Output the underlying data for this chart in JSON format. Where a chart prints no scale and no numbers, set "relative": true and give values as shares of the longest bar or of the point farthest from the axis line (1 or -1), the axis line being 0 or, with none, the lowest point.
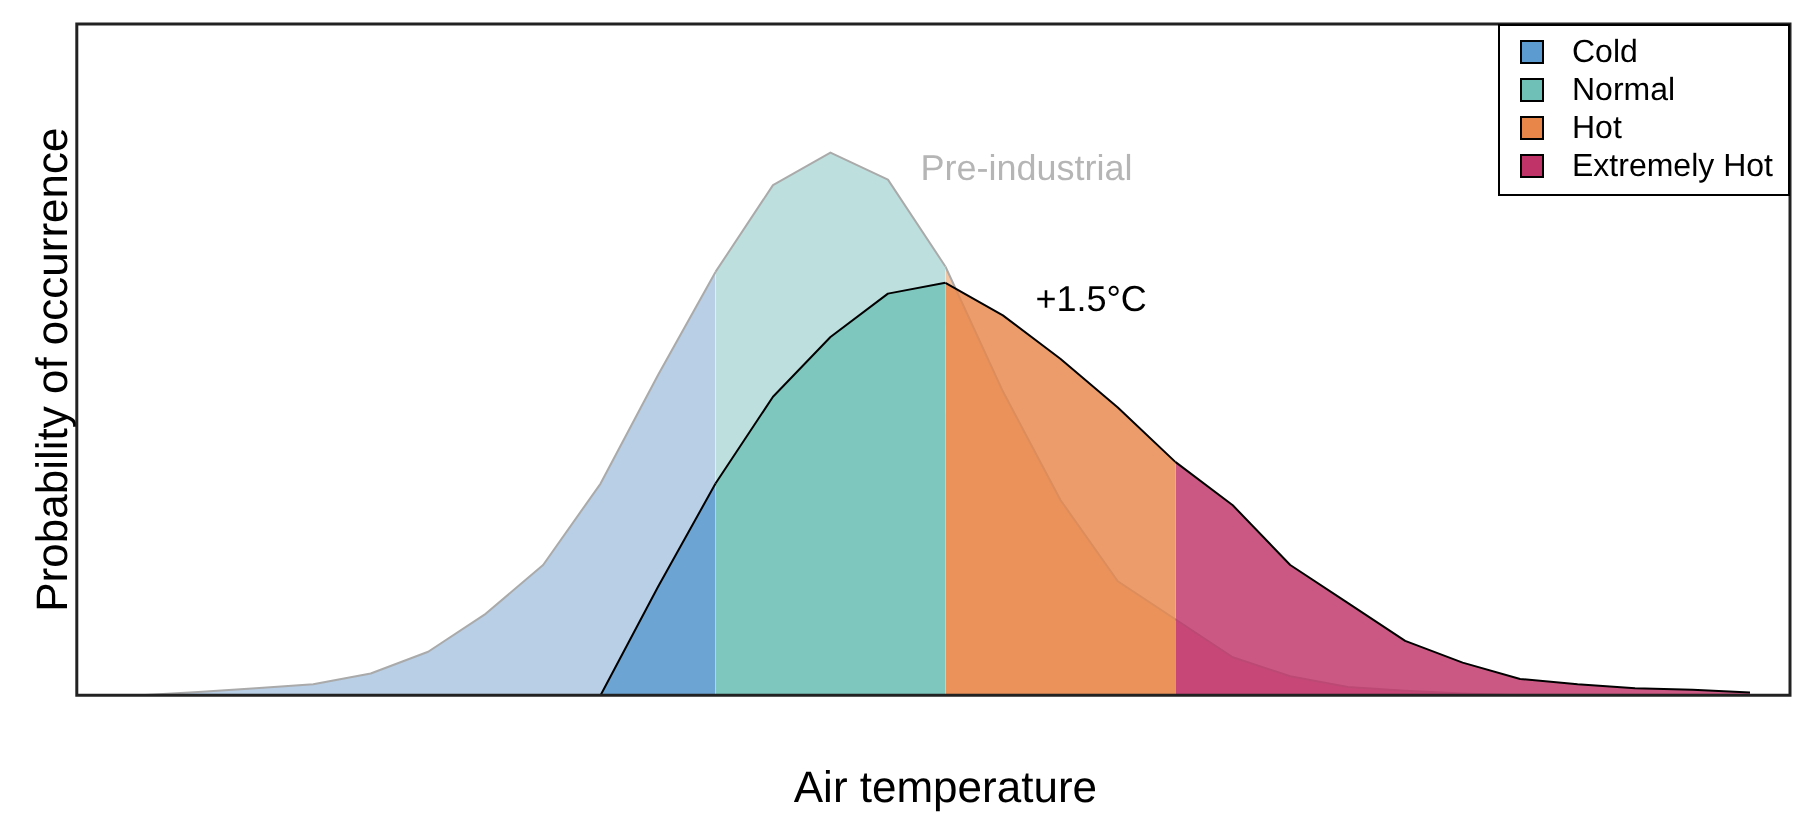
{
  "chart_data": {
    "type": "area",
    "relative": true,
    "xlabel": "Air temperature",
    "ylabel": "Probability of occurrence",
    "legend": "top right",
    "categories": [
      null,
      null,
      null,
      null,
      null,
      null,
      null,
      null,
      null,
      null,
      null,
      null,
      null,
      null,
      null,
      null,
      null,
      null,
      null,
      null,
      null,
      null,
      null,
      null,
      null,
      null,
      null,
      null,
      null
    ],
    "series": [
      {
        "name": "Cold",
        "color": "#5b9bd0",
        "values": [
          null,
          null,
          null,
          null,
          null,
          null,
          null,
          null,
          0,
          0.2,
          0.39,
          null,
          null,
          null,
          null,
          null,
          null,
          null,
          null,
          null,
          null,
          null,
          null,
          null,
          null,
          null,
          null,
          null,
          null
        ]
      },
      {
        "name": "Normal",
        "color": "#6fc1b8",
        "values": [
          null,
          null,
          null,
          null,
          null,
          null,
          null,
          null,
          null,
          null,
          0.39,
          0.55,
          0.66,
          0.74,
          0.76,
          null,
          null,
          null,
          null,
          null,
          null,
          null,
          null,
          null,
          null,
          null,
          null,
          null,
          null
        ]
      },
      {
        "name": "Hot",
        "color": "#e8864a",
        "values": [
          null,
          null,
          null,
          null,
          null,
          null,
          null,
          null,
          null,
          null,
          null,
          null,
          null,
          null,
          0.76,
          0.7,
          0.62,
          0.53,
          0.43,
          null,
          null,
          null,
          null,
          null,
          null,
          null,
          null,
          null,
          null
        ]
      },
      {
        "name": "Extremely Hot",
        "color": "#bf3368",
        "values": [
          null,
          null,
          null,
          null,
          null,
          null,
          null,
          null,
          null,
          null,
          null,
          null,
          null,
          null,
          null,
          null,
          null,
          null,
          0.43,
          0.35,
          0.24,
          0.17,
          0.1,
          0.06,
          0.03,
          0.02,
          0.013,
          0.01,
          0.005
        ]
      },
      {
        "color": "#b8cfe6",
        "values": [
          0,
          0.006,
          0.013,
          0.02,
          0.04,
          0.08,
          0.15,
          0.24,
          0.39,
          0.59,
          0.78,
          null,
          null,
          null,
          null,
          null,
          null,
          null,
          null,
          null,
          null,
          null,
          null,
          null,
          null,
          null,
          null,
          null,
          null
        ]
      },
      {
        "color": "#bde0df",
        "values": [
          null,
          null,
          null,
          null,
          null,
          null,
          null,
          null,
          null,
          null,
          0.78,
          0.94,
          1.0,
          0.95,
          0.79,
          null,
          null,
          null,
          null,
          null,
          null,
          null,
          null,
          null,
          null,
          null,
          null,
          null,
          null
        ]
      },
      {
        "color": "#f4c6a3",
        "values": [
          null,
          null,
          null,
          null,
          null,
          null,
          null,
          null,
          null,
          null,
          null,
          null,
          null,
          null,
          0.79,
          0.56,
          0.36,
          0.21,
          0.14,
          null,
          null,
          null,
          null,
          null,
          null,
          null,
          null,
          null,
          null
        ]
      },
      {
        "color": "#e6a3bd",
        "values": [
          null,
          null,
          null,
          null,
          null,
          null,
          null,
          null,
          null,
          null,
          null,
          null,
          null,
          null,
          null,
          null,
          null,
          null,
          0.14,
          0.07,
          0.035,
          0.015,
          0.008,
          0.003,
          0,
          null,
          null,
          null,
          null
        ]
      }
    ],
    "annotations": [
      "Pre-industrial",
      "+1.5°C"
    ]
  }
}
